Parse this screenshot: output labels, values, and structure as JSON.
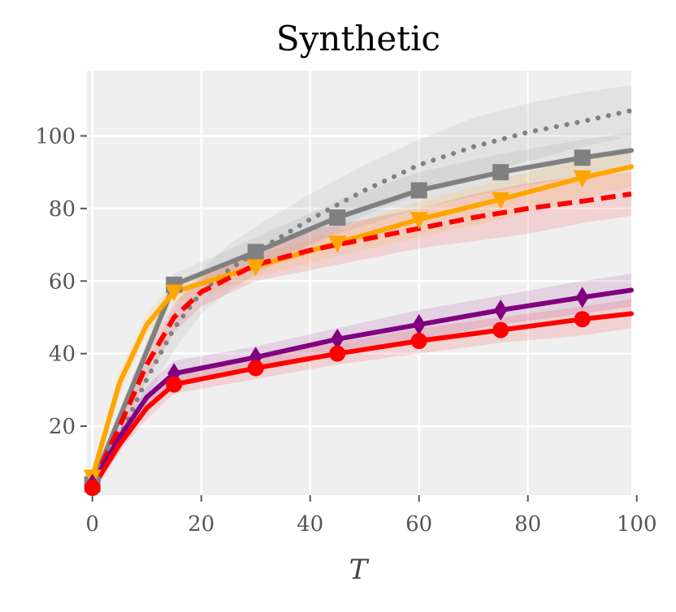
{
  "chart_data": {
    "type": "line",
    "title": "Synthetic",
    "xlabel": "T",
    "ylabel": "",
    "xlim": [
      -1,
      99
    ],
    "ylim": [
      1,
      118
    ],
    "xticks": [
      0,
      20,
      40,
      60,
      80,
      100
    ],
    "yticks": [
      20,
      40,
      60,
      80,
      100
    ],
    "grid": true,
    "background": "#efefef",
    "series": [
      {
        "name": "gray-dotted",
        "color": "#808080",
        "dash": "dotted",
        "marker": "none",
        "x": [
          0,
          5,
          10,
          15,
          20,
          25,
          30,
          40,
          50,
          60,
          70,
          80,
          90,
          99
        ],
        "y": [
          4,
          17,
          33,
          47,
          57,
          63,
          68,
          77,
          85,
          92,
          97,
          101,
          104,
          107
        ],
        "band_lower": [
          2,
          13,
          28,
          41,
          51,
          57,
          62,
          70,
          78,
          84,
          89,
          93,
          97,
          100
        ],
        "band_upper": [
          6,
          21,
          38,
          53,
          63,
          70,
          75,
          84,
          92,
          99,
          105,
          109,
          112,
          114
        ]
      },
      {
        "name": "gray-square",
        "color": "#808080",
        "dash": "solid",
        "marker": "square",
        "x": [
          0,
          15,
          30,
          45,
          60,
          75,
          90,
          99
        ],
        "y": [
          4,
          59,
          68,
          77.5,
          85,
          90,
          94,
          96
        ],
        "band_lower": [
          2,
          56,
          64,
          73,
          80,
          85,
          89,
          91
        ],
        "band_upper": [
          6,
          62,
          72,
          82,
          90,
          95,
          99,
          101
        ]
      },
      {
        "name": "orange-triangle",
        "color": "#ffa500",
        "dash": "solid",
        "marker": "triangle-down",
        "x": [
          0,
          5,
          10,
          15,
          30,
          45,
          60,
          75,
          90,
          99
        ],
        "y": [
          6,
          32,
          48,
          57,
          64,
          70.5,
          77,
          82.5,
          88.5,
          91.5
        ],
        "band_lower": [
          4,
          29,
          45,
          54,
          61,
          67,
          72,
          77,
          83,
          86
        ],
        "band_upper": [
          8,
          35,
          51,
          60,
          67,
          74,
          82,
          88,
          94,
          97
        ]
      },
      {
        "name": "red-dashed",
        "color": "#ff0000",
        "dash": "dashed",
        "marker": "none",
        "x": [
          0,
          5,
          10,
          15,
          20,
          30,
          40,
          50,
          60,
          70,
          80,
          90,
          99
        ],
        "y": [
          4,
          20,
          37,
          50,
          57,
          64.5,
          68.5,
          71.5,
          74.5,
          77.5,
          80,
          82,
          84
        ],
        "band_lower": [
          2,
          17,
          33,
          46,
          53,
          60,
          63,
          66,
          69,
          71,
          73,
          76,
          78
        ],
        "band_upper": [
          6,
          23,
          41,
          54,
          61,
          69,
          74,
          77,
          80,
          84,
          87,
          89,
          90
        ]
      },
      {
        "name": "purple-diamond",
        "color": "#800080",
        "dash": "solid",
        "marker": "diamond",
        "x": [
          0,
          5,
          10,
          15,
          30,
          45,
          60,
          75,
          90,
          99
        ],
        "y": [
          4,
          17,
          28,
          34.5,
          39,
          44,
          48,
          52,
          55.5,
          57.5
        ],
        "band_lower": [
          2,
          15,
          25,
          31,
          36,
          41,
          44,
          48,
          51,
          53
        ],
        "band_upper": [
          6,
          19,
          31,
          38,
          42,
          47,
          52,
          56,
          60,
          62
        ]
      },
      {
        "name": "red-circle",
        "color": "#ff0000",
        "dash": "solid",
        "marker": "circle",
        "x": [
          0,
          5,
          10,
          15,
          30,
          45,
          60,
          75,
          90,
          99
        ],
        "y": [
          3,
          15,
          25,
          31.5,
          36,
          40,
          43.5,
          46.5,
          49.5,
          51
        ],
        "band_lower": [
          1,
          13,
          22,
          29,
          33,
          37,
          40,
          43,
          45,
          47
        ],
        "band_upper": [
          5,
          17,
          28,
          34,
          39,
          43,
          47,
          50,
          53,
          55
        ]
      }
    ]
  }
}
